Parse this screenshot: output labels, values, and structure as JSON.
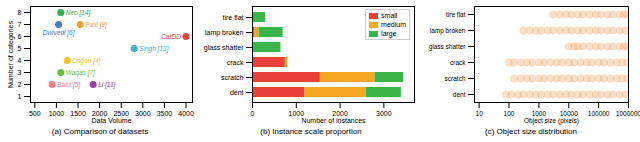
{
  "chart_data": [
    {
      "type": "scatter",
      "title": "(a) Comparison of datasets",
      "x_label": "Data Volume",
      "y_label": "Number of categories",
      "x": [
        1100,
        1050,
        1550,
        4000,
        2800,
        1250,
        1100,
        1850,
        900
      ],
      "values": [
        8,
        7,
        7,
        6,
        5,
        4,
        3,
        2,
        2
      ],
      "point_labels": [
        "Neo [14]",
        "Dwivedi [6]",
        "Patil [8]",
        "CarDD",
        "Singh [13]",
        "Doğan [4]",
        "Waqas [7]",
        "Li [11]",
        "Balci [5]"
      ],
      "colors": [
        "#33b04a",
        "#4a7fc1",
        "#f0a030",
        "#e8453c",
        "#3fb2c2",
        "#f2c530",
        "#6abf40",
        "#9b3fa8",
        "#f08080"
      ],
      "xlim": [
        400,
        4150
      ],
      "xticks": [
        500,
        1000,
        1500,
        2000,
        2500,
        3000,
        3500,
        4000
      ],
      "ylim": [
        0.5,
        8.5
      ],
      "yticks": [
        1,
        2,
        3,
        4,
        5,
        6,
        7,
        8
      ]
    },
    {
      "type": "bar",
      "orientation": "horizontal",
      "stacked": true,
      "legend": "top-right",
      "title": "(b) Instance scale proportion",
      "x_label": "Number of instances",
      "categories": [
        "tire flat",
        "lamp broken",
        "glass shatter",
        "crack",
        "scratch",
        "dent"
      ],
      "series": [
        {
          "name": "small",
          "color": "#e8413a",
          "values": [
            0,
            50,
            0,
            750,
            1550,
            1200
          ]
        },
        {
          "name": "medium",
          "color": "#f5a623",
          "values": [
            0,
            100,
            0,
            50,
            1250,
            1400
          ]
        },
        {
          "name": "large",
          "color": "#3bb54a",
          "values": [
            300,
            550,
            650,
            0,
            650,
            800
          ]
        }
      ],
      "xlim": [
        0,
        3700
      ],
      "xticks": [
        0,
        1000,
        2000,
        3000
      ]
    },
    {
      "type": "scatter",
      "log": "x",
      "title": "(c) Object size distribution",
      "x_label": "Object size (pixels)",
      "color": "#f5a05a",
      "categories": [
        "tire flat",
        "lamp broken",
        "glass shatter",
        "crack",
        "scratch",
        "dent"
      ],
      "values": [
        [
          3000,
          5000,
          8000,
          12000,
          20000,
          30000,
          50000,
          80000,
          120000,
          200000,
          300000,
          500000,
          700000,
          900000
        ],
        [
          300,
          500,
          800,
          1200,
          2000,
          3000,
          5000,
          8000,
          12000,
          20000,
          30000,
          50000,
          80000,
          120000,
          200000,
          300000,
          500000,
          800000
        ],
        [
          10000,
          15000,
          20000,
          30000,
          50000,
          80000,
          120000,
          200000,
          300000,
          500000,
          700000,
          900000
        ],
        [
          100,
          150,
          250,
          400,
          600,
          1000,
          1500,
          2500,
          4000,
          6000,
          10000,
          15000,
          25000,
          40000,
          60000,
          100000,
          150000,
          250000,
          400000,
          600000,
          900000
        ],
        [
          150,
          250,
          400,
          600,
          1000,
          1500,
          2500,
          4000,
          6000,
          10000,
          15000,
          25000,
          40000,
          60000,
          100000,
          150000,
          250000,
          400000,
          600000,
          900000
        ],
        [
          80,
          120,
          200,
          300,
          500,
          800,
          1200,
          2000,
          3000,
          5000,
          8000,
          12000,
          20000,
          30000,
          50000,
          80000,
          120000,
          200000,
          300000,
          500000,
          800000
        ]
      ],
      "xlim": [
        7,
        1000000
      ],
      "xticks": [
        10,
        100,
        1000,
        10000,
        100000,
        1000000
      ]
    }
  ]
}
